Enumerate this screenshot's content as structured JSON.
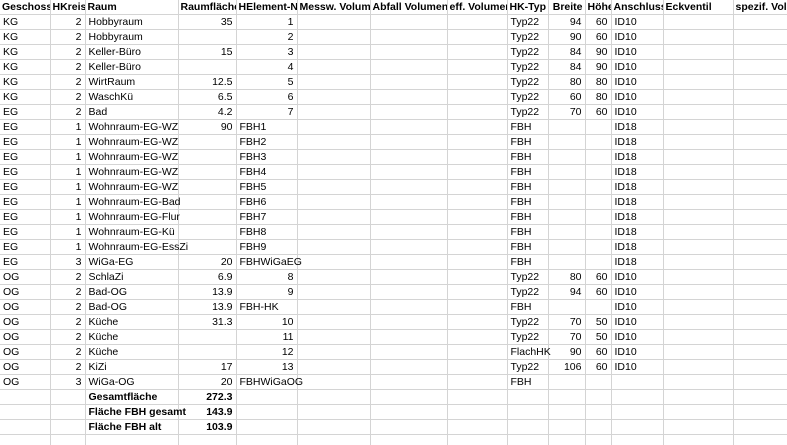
{
  "sheet": {
    "gridline_color": "#d4d4d4",
    "text_color": "#000000",
    "background_color": "#ffffff"
  },
  "table": {
    "headers": [
      {
        "key": "geschoss",
        "label": "Geschoss"
      },
      {
        "key": "hkreis",
        "label": "HKreis"
      },
      {
        "key": "raum",
        "label": "Raum"
      },
      {
        "key": "raumflaeche",
        "label": "Raumfläche"
      },
      {
        "key": "helement-nr",
        "label": "HElement-Nr."
      },
      {
        "key": "messw-volume",
        "label": "Messw. Volume"
      },
      {
        "key": "abfall-volumen",
        "label": "Abfall Volumen"
      },
      {
        "key": "eff-volumenstr",
        "label": "eff. Volumenstr"
      },
      {
        "key": "hk-typ",
        "label": "HK-Typ"
      },
      {
        "key": "breite",
        "label": "Breite"
      },
      {
        "key": "hoehe",
        "label": "Höhe"
      },
      {
        "key": "anschluss",
        "label": "Anschluss"
      },
      {
        "key": "eckventil",
        "label": "Eckventil"
      },
      {
        "key": "spezif-volumen",
        "label": "spezif. Volum"
      }
    ],
    "rows": [
      {
        "bold": false,
        "cells": [
          "KG",
          "2",
          "Hobbyraum",
          "35",
          "1",
          "",
          "",
          "",
          "Typ22",
          "94",
          "60",
          "ID10",
          "",
          ""
        ]
      },
      {
        "bold": false,
        "cells": [
          "KG",
          "2",
          "Hobbyraum",
          "",
          "2",
          "",
          "",
          "",
          "Typ22",
          "90",
          "60",
          "ID10",
          "",
          ""
        ]
      },
      {
        "bold": false,
        "cells": [
          "KG",
          "2",
          "Keller-Büro",
          "15",
          "3",
          "",
          "",
          "",
          "Typ22",
          "84",
          "90",
          "ID10",
          "",
          ""
        ]
      },
      {
        "bold": false,
        "cells": [
          "KG",
          "2",
          "Keller-Büro",
          "",
          "4",
          "",
          "",
          "",
          "Typ22",
          "84",
          "90",
          "ID10",
          "",
          ""
        ]
      },
      {
        "bold": false,
        "cells": [
          "KG",
          "2",
          "WirtRaum",
          "12.5",
          "5",
          "",
          "",
          "",
          "Typ22",
          "80",
          "80",
          "ID10",
          "",
          ""
        ]
      },
      {
        "bold": false,
        "cells": [
          "KG",
          "2",
          "WaschKü",
          "6.5",
          "6",
          "",
          "",
          "",
          "Typ22",
          "60",
          "80",
          "ID10",
          "",
          ""
        ]
      },
      {
        "bold": false,
        "cells": [
          "EG",
          "2",
          "Bad",
          "4.2",
          "7",
          "",
          "",
          "",
          "Typ22",
          "70",
          "60",
          "ID10",
          "",
          ""
        ]
      },
      {
        "bold": false,
        "cells": [
          "EG",
          "1",
          "Wohnraum-EG-WZ",
          "90",
          "FBH1",
          "",
          "",
          "",
          "FBH",
          "",
          "",
          "ID18",
          "",
          ""
        ]
      },
      {
        "bold": false,
        "cells": [
          "EG",
          "1",
          "Wohnraum-EG-WZ",
          "",
          "FBH2",
          "",
          "",
          "",
          "FBH",
          "",
          "",
          "ID18",
          "",
          ""
        ]
      },
      {
        "bold": false,
        "cells": [
          "EG",
          "1",
          "Wohnraum-EG-WZ",
          "",
          "FBH3",
          "",
          "",
          "",
          "FBH",
          "",
          "",
          "ID18",
          "",
          ""
        ]
      },
      {
        "bold": false,
        "cells": [
          "EG",
          "1",
          "Wohnraum-EG-WZ",
          "",
          "FBH4",
          "",
          "",
          "",
          "FBH",
          "",
          "",
          "ID18",
          "",
          ""
        ]
      },
      {
        "bold": false,
        "cells": [
          "EG",
          "1",
          "Wohnraum-EG-WZ",
          "",
          "FBH5",
          "",
          "",
          "",
          "FBH",
          "",
          "",
          "ID18",
          "",
          ""
        ]
      },
      {
        "bold": false,
        "cells": [
          "EG",
          "1",
          "Wohnraum-EG-Bad",
          "",
          "FBH6",
          "",
          "",
          "",
          "FBH",
          "",
          "",
          "ID18",
          "",
          ""
        ]
      },
      {
        "bold": false,
        "cells": [
          "EG",
          "1",
          "Wohnraum-EG-Flur",
          "",
          "FBH7",
          "",
          "",
          "",
          "FBH",
          "",
          "",
          "ID18",
          "",
          ""
        ]
      },
      {
        "bold": false,
        "cells": [
          "EG",
          "1",
          "Wohnraum-EG-Kü",
          "",
          "FBH8",
          "",
          "",
          "",
          "FBH",
          "",
          "",
          "ID18",
          "",
          ""
        ]
      },
      {
        "bold": false,
        "cells": [
          "EG",
          "1",
          "Wohnraum-EG-EssZi",
          "",
          "FBH9",
          "",
          "",
          "",
          "FBH",
          "",
          "",
          "ID18",
          "",
          ""
        ]
      },
      {
        "bold": false,
        "cells": [
          "EG",
          "3",
          "WiGa-EG",
          "20",
          "FBHWiGaEG",
          "",
          "",
          "",
          "FBH",
          "",
          "",
          "ID18",
          "",
          ""
        ]
      },
      {
        "bold": false,
        "cells": [
          "OG",
          "2",
          "SchlaZi",
          "6.9",
          "8",
          "",
          "",
          "",
          "Typ22",
          "80",
          "60",
          "ID10",
          "",
          ""
        ]
      },
      {
        "bold": false,
        "cells": [
          "OG",
          "2",
          "Bad-OG",
          "13.9",
          "9",
          "",
          "",
          "",
          "Typ22",
          "94",
          "60",
          "ID10",
          "",
          ""
        ]
      },
      {
        "bold": false,
        "cells": [
          "OG",
          "2",
          "Bad-OG",
          "13.9",
          "FBH-HK",
          "",
          "",
          "",
          "FBH",
          "",
          "",
          "ID10",
          "",
          ""
        ]
      },
      {
        "bold": false,
        "cells": [
          "OG",
          "2",
          "Küche",
          "31.3",
          "10",
          "",
          "",
          "",
          "Typ22",
          "70",
          "50",
          "ID10",
          "",
          ""
        ]
      },
      {
        "bold": false,
        "cells": [
          "OG",
          "2",
          "Küche",
          "",
          "11",
          "",
          "",
          "",
          "Typ22",
          "70",
          "50",
          "ID10",
          "",
          ""
        ]
      },
      {
        "bold": false,
        "cells": [
          "OG",
          "2",
          "Küche",
          "",
          "12",
          "",
          "",
          "",
          "FlachHK",
          "90",
          "60",
          "ID10",
          "",
          ""
        ]
      },
      {
        "bold": false,
        "cells": [
          "OG",
          "2",
          "KiZi",
          "17",
          "13",
          "",
          "",
          "",
          "Typ22",
          "106",
          "60",
          "ID10",
          "",
          ""
        ]
      },
      {
        "bold": false,
        "cells": [
          "OG",
          "3",
          "WiGa-OG",
          "20",
          "FBHWiGaOG",
          "",
          "",
          "",
          "FBH",
          "",
          "",
          "",
          "",
          ""
        ]
      },
      {
        "bold": true,
        "cells": [
          "",
          "",
          "Gesamtfläche",
          "272.3",
          "",
          "",
          "",
          "",
          "",
          "",
          "",
          "",
          "",
          ""
        ]
      },
      {
        "bold": true,
        "cells": [
          "",
          "",
          "Fläche FBH gesamt",
          "143.9",
          "",
          "",
          "",
          "",
          "",
          "",
          "",
          "",
          "",
          ""
        ]
      },
      {
        "bold": true,
        "cells": [
          "",
          "",
          "Fläche FBH alt",
          "103.9",
          "",
          "",
          "",
          "",
          "",
          "",
          "",
          "",
          "",
          ""
        ]
      },
      {
        "bold": false,
        "cells": [
          "",
          "",
          "",
          "",
          "",
          "",
          "",
          "",
          "",
          "",
          "",
          "",
          "",
          ""
        ]
      }
    ]
  }
}
